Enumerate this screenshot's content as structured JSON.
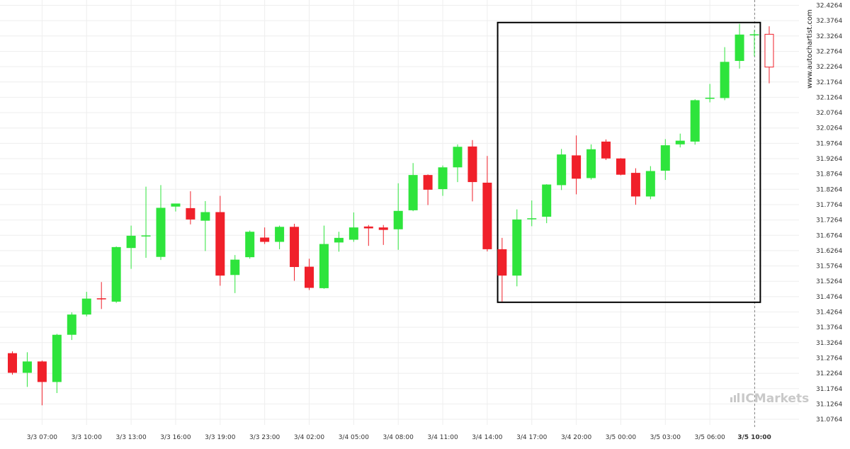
{
  "watermark": {
    "vertical_text": "www.autochartist.com",
    "logo_text": "ICMarkets"
  },
  "colors": {
    "up": "#2ee43c",
    "down": "#f0202a",
    "grid": "#eeeeee",
    "box": "#000000",
    "axis_text": "#333333",
    "logo": "#c9c9c9"
  },
  "chart_data": {
    "type": "candlestick",
    "title": "",
    "xlabel": "",
    "ylabel": "",
    "ylim": [
      31.04,
      32.4264
    ],
    "y_ticks": [
      "32.4264",
      "32.3764",
      "32.3264",
      "32.2764",
      "32.2264",
      "32.1764",
      "32.1264",
      "32.0764",
      "32.0264",
      "31.9764",
      "31.9264",
      "31.8764",
      "31.8264",
      "31.7764",
      "31.7264",
      "31.6764",
      "31.6264",
      "31.5764",
      "31.5264",
      "31.4764",
      "31.4264",
      "31.3764",
      "31.3264",
      "31.2764",
      "31.2264",
      "31.1764",
      "31.1264",
      "31.0764"
    ],
    "x_ticks": [
      {
        "index": 2,
        "label": "3/3 07:00"
      },
      {
        "index": 5,
        "label": "3/3 10:00"
      },
      {
        "index": 8,
        "label": "3/3 13:00"
      },
      {
        "index": 11,
        "label": "3/3 16:00"
      },
      {
        "index": 14,
        "label": "3/3 19:00"
      },
      {
        "index": 17,
        "label": "3/3 23:00"
      },
      {
        "index": 20,
        "label": "3/4 02:00"
      },
      {
        "index": 23,
        "label": "3/4 05:00"
      },
      {
        "index": 26,
        "label": "3/4 08:00"
      },
      {
        "index": 29,
        "label": "3/4 11:00"
      },
      {
        "index": 32,
        "label": "3/4 14:00"
      },
      {
        "index": 35,
        "label": "3/4 17:00"
      },
      {
        "index": 38,
        "label": "3/4 20:00"
      },
      {
        "index": 41,
        "label": "3/5 00:00"
      },
      {
        "index": 44,
        "label": "3/5 03:00"
      },
      {
        "index": 47,
        "label": "3/5 06:00"
      },
      {
        "index": 50,
        "label": "3/5 10:00",
        "bold": true
      }
    ],
    "candles": [
      {
        "o": 31.292,
        "h": 31.298,
        "l": 31.222,
        "c": 31.228
      },
      {
        "o": 31.228,
        "h": 31.295,
        "l": 31.182,
        "c": 31.265
      },
      {
        "o": 31.265,
        "h": 31.268,
        "l": 31.122,
        "c": 31.198
      },
      {
        "o": 31.198,
        "h": 31.355,
        "l": 31.162,
        "c": 31.352
      },
      {
        "o": 31.352,
        "h": 31.425,
        "l": 31.335,
        "c": 31.418
      },
      {
        "o": 31.418,
        "h": 31.492,
        "l": 31.412,
        "c": 31.47
      },
      {
        "o": 31.471,
        "h": 31.524,
        "l": 31.436,
        "c": 31.469
      },
      {
        "o": 31.46,
        "h": 31.64,
        "l": 31.456,
        "c": 31.638
      },
      {
        "o": 31.635,
        "h": 31.708,
        "l": 31.567,
        "c": 31.675
      },
      {
        "o": 31.674,
        "h": 31.835,
        "l": 31.603,
        "c": 31.676
      },
      {
        "o": 31.606,
        "h": 31.84,
        "l": 31.596,
        "c": 31.766
      },
      {
        "o": 31.77,
        "h": 31.778,
        "l": 31.754,
        "c": 31.78
      },
      {
        "o": 31.765,
        "h": 31.82,
        "l": 31.712,
        "c": 31.728
      },
      {
        "o": 31.724,
        "h": 31.788,
        "l": 31.625,
        "c": 31.752
      },
      {
        "o": 31.752,
        "h": 31.805,
        "l": 31.512,
        "c": 31.545
      },
      {
        "o": 31.547,
        "h": 31.612,
        "l": 31.488,
        "c": 31.597
      },
      {
        "o": 31.605,
        "h": 31.692,
        "l": 31.6,
        "c": 31.688
      },
      {
        "o": 31.669,
        "h": 31.702,
        "l": 31.648,
        "c": 31.655
      },
      {
        "o": 31.655,
        "h": 31.708,
        "l": 31.631,
        "c": 31.704
      },
      {
        "o": 31.704,
        "h": 31.714,
        "l": 31.528,
        "c": 31.573
      },
      {
        "o": 31.574,
        "h": 31.6,
        "l": 31.498,
        "c": 31.505
      },
      {
        "o": 31.504,
        "h": 31.708,
        "l": 31.502,
        "c": 31.648
      },
      {
        "o": 31.653,
        "h": 31.688,
        "l": 31.623,
        "c": 31.668
      },
      {
        "o": 31.662,
        "h": 31.751,
        "l": 31.655,
        "c": 31.702
      },
      {
        "o": 31.705,
        "h": 31.71,
        "l": 31.642,
        "c": 31.699
      },
      {
        "o": 31.702,
        "h": 31.71,
        "l": 31.645,
        "c": 31.694
      },
      {
        "o": 31.696,
        "h": 31.846,
        "l": 31.629,
        "c": 31.756
      },
      {
        "o": 31.758,
        "h": 31.912,
        "l": 31.755,
        "c": 31.873
      },
      {
        "o": 31.873,
        "h": 31.875,
        "l": 31.775,
        "c": 31.825
      },
      {
        "o": 31.827,
        "h": 31.904,
        "l": 31.805,
        "c": 31.898
      },
      {
        "o": 31.898,
        "h": 31.973,
        "l": 31.85,
        "c": 31.965
      },
      {
        "o": 31.966,
        "h": 31.987,
        "l": 31.787,
        "c": 31.85
      },
      {
        "o": 31.848,
        "h": 31.935,
        "l": 31.624,
        "c": 31.631
      },
      {
        "o": 31.631,
        "h": 31.668,
        "l": 31.46,
        "c": 31.545
      },
      {
        "o": 31.545,
        "h": 31.761,
        "l": 31.51,
        "c": 31.728
      },
      {
        "o": 31.73,
        "h": 31.79,
        "l": 31.706,
        "c": 31.732
      },
      {
        "o": 31.737,
        "h": 31.843,
        "l": 31.716,
        "c": 31.842
      },
      {
        "o": 31.84,
        "h": 31.958,
        "l": 31.824,
        "c": 31.94
      },
      {
        "o": 31.937,
        "h": 32.002,
        "l": 31.81,
        "c": 31.861
      },
      {
        "o": 31.863,
        "h": 31.973,
        "l": 31.858,
        "c": 31.957
      },
      {
        "o": 31.982,
        "h": 31.989,
        "l": 31.922,
        "c": 31.927
      },
      {
        "o": 31.927,
        "h": 31.928,
        "l": 31.872,
        "c": 31.874
      },
      {
        "o": 31.88,
        "h": 31.895,
        "l": 31.776,
        "c": 31.803
      },
      {
        "o": 31.803,
        "h": 31.902,
        "l": 31.794,
        "c": 31.886
      },
      {
        "o": 31.887,
        "h": 31.99,
        "l": 31.857,
        "c": 31.97
      },
      {
        "o": 31.973,
        "h": 32.008,
        "l": 31.963,
        "c": 31.985
      },
      {
        "o": 31.982,
        "h": 32.12,
        "l": 31.972,
        "c": 32.117
      },
      {
        "o": 32.123,
        "h": 32.17,
        "l": 32.11,
        "c": 32.125
      },
      {
        "o": 32.124,
        "h": 32.29,
        "l": 32.117,
        "c": 32.242
      },
      {
        "o": 32.245,
        "h": 32.366,
        "l": 32.22,
        "c": 32.331
      },
      {
        "o": 32.332,
        "h": 32.346,
        "l": 32.26,
        "c": 32.332
      },
      {
        "o": 32.332,
        "h": 32.358,
        "l": 32.172,
        "c": 32.225
      }
    ],
    "highlight_box": {
      "from_index": 32.7,
      "to_index": 50.4,
      "y_top": 32.3703,
      "y_bottom": 31.458
    },
    "current_time_marker_index": 50
  }
}
